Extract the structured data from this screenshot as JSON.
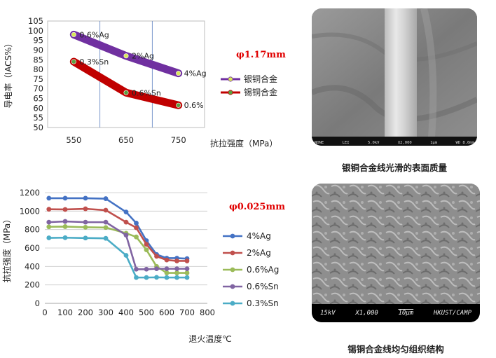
{
  "chart_data": [
    {
      "type": "line",
      "ylabel": "导电率（IACS%）",
      "xlabel": "抗拉强度（MPa）",
      "annotation": "φ1.17mm",
      "categories": [
        "550",
        "650",
        "750"
      ],
      "ylim": [
        50,
        105
      ],
      "yticks": [
        "50",
        "55",
        "60",
        "65",
        "70",
        "75",
        "80",
        "85",
        "90",
        "95",
        "100",
        "105"
      ],
      "grid": "vertical",
      "legend_position": "right",
      "series": [
        {
          "name": "银铜合金",
          "color": "#7030a0",
          "marker_color": "#d8e858",
          "values": [
            98,
            87,
            78
          ],
          "point_labels": [
            "0.6%Ag",
            "2%Ag",
            "4%Ag"
          ]
        },
        {
          "name": "锡铜合金",
          "color": "#c00000",
          "marker_color": "#5aa040",
          "values": [
            84,
            68,
            61.5
          ],
          "point_labels": [
            "0.3%Sn",
            "0.6%Sn",
            "0.6%"
          ]
        }
      ]
    },
    {
      "type": "line",
      "ylabel": "抗拉强度（MPa）",
      "xlabel": "退火温度℃",
      "annotation": "φ0.025mm",
      "xlim": [
        0,
        800
      ],
      "xticks": [
        "0",
        "100",
        "200",
        "300",
        "400",
        "500",
        "600",
        "700",
        "800"
      ],
      "ylim": [
        0,
        1200
      ],
      "yticks": [
        "0",
        "200",
        "400",
        "600",
        "800",
        "1000",
        "1200"
      ],
      "grid": "horizontal",
      "legend_position": "right",
      "x": [
        20,
        100,
        200,
        300,
        400,
        450,
        500,
        550,
        600,
        650,
        700
      ],
      "series": [
        {
          "name": "4%Ag",
          "color": "#4472c4",
          "values": [
            1140,
            1140,
            1140,
            1135,
            990,
            870,
            680,
            530,
            490,
            490,
            485
          ]
        },
        {
          "name": "2%Ag",
          "color": "#c0504d",
          "values": [
            1020,
            1018,
            1025,
            1010,
            880,
            820,
            640,
            510,
            470,
            460,
            460
          ]
        },
        {
          "name": "0.6%Ag",
          "color": "#9bbb59",
          "values": [
            830,
            832,
            825,
            822,
            760,
            720,
            580,
            400,
            330,
            330,
            330
          ]
        },
        {
          "name": "0.6%Sn",
          "color": "#8064a2",
          "values": [
            880,
            888,
            880,
            880,
            740,
            370,
            370,
            375,
            375,
            375,
            375
          ]
        },
        {
          "name": "0.3%Sn",
          "color": "#4bacc6",
          "values": [
            710,
            712,
            708,
            705,
            520,
            280,
            280,
            282,
            280,
            280,
            280
          ]
        }
      ]
    }
  ],
  "images": {
    "top": {
      "caption": "银铜合金线光滑的表面质量",
      "info_bar": [
        "NONE",
        "LEI",
        "5.0kV",
        "X2,000",
        "1μm",
        "WD 8.0mm"
      ]
    },
    "bottom": {
      "caption": "锡铜合金线均匀组织结构",
      "info_bar": [
        "15kV",
        "X1,000",
        "10μm",
        "HKUST/CAMP"
      ]
    }
  }
}
